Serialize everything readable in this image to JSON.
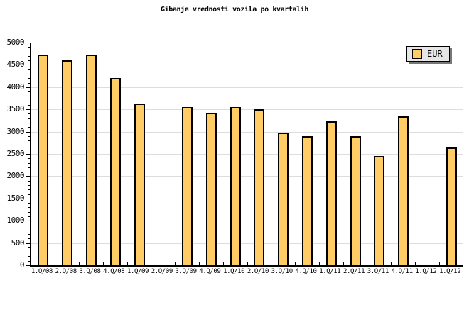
{
  "colors": {
    "bar_fill": "#FFCC66",
    "bar_border": "#000000",
    "gridline": "#DDDDDD",
    "axis": "#000000",
    "legend_bg": "#E6E6E6",
    "legend_shadow": "#777777",
    "background": "#FFFFFF"
  },
  "chart_data": {
    "type": "bar",
    "title": "Gibanje vrednosti vozila po kvartalih",
    "categories": [
      "1.Q/08",
      "2.Q/08",
      "3.Q/08",
      "4.Q/08",
      "1.Q/09",
      "2.Q/09",
      "3.Q/09",
      "4.Q/09",
      "1.Q/10",
      "2.Q/10",
      "3.Q/10",
      "4.Q/10",
      "1.Q/11",
      "2.Q/11",
      "3.Q/11",
      "4.Q/11",
      "1.Q/12",
      "1.Q/12"
    ],
    "series": [
      {
        "name": "EUR",
        "values": [
          4725,
          4600,
          4725,
          4200,
          3625,
          null,
          3550,
          3425,
          3550,
          3500,
          2975,
          2900,
          3225,
          2900,
          2450,
          3350,
          null,
          2650
        ]
      }
    ],
    "xlabel": "",
    "ylabel": "",
    "ylim": [
      0,
      5000
    ],
    "ytick_step": 500,
    "y_minor_step": 100,
    "grid": "horizontal",
    "legend_position": "top-right",
    "missing_categories": [
      "2.Q/09",
      "1.Q/12"
    ]
  }
}
